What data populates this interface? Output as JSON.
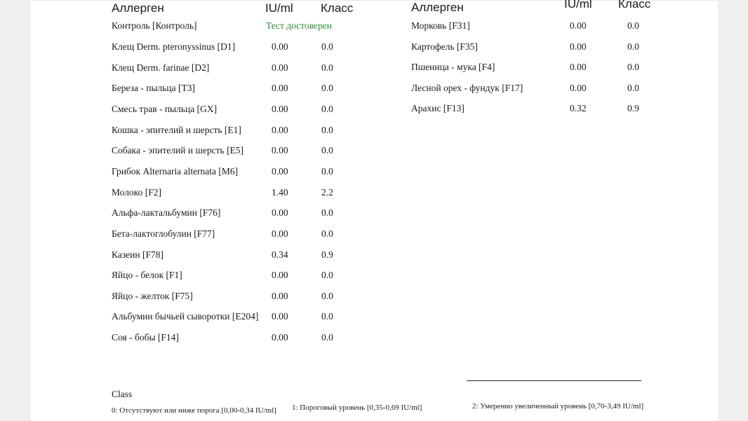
{
  "left_table": {
    "headers": {
      "allergen": "Аллерген",
      "iu": "IU/ml",
      "class": "Класс"
    },
    "control": {
      "name": "Контроль [Контроль]",
      "status": "Тест достоверен"
    },
    "rows": [
      {
        "name": "Клещ Derm. pteronyssinus [D1]",
        "iu": "0.00",
        "cls": "0.0"
      },
      {
        "name": "Клещ Derm. farinae [D2]",
        "iu": "0.00",
        "cls": "0.0"
      },
      {
        "name": "Береза - пыльца [T3]",
        "iu": "0.00",
        "cls": "0.0"
      },
      {
        "name": "Смесь трав - пыльца [GX]",
        "iu": "0.00",
        "cls": "0.0"
      },
      {
        "name": "Кошка - эпителий и шерсть [E1]",
        "iu": "0.00",
        "cls": "0.0"
      },
      {
        "name": "Собака - эпителий и шерсть [E5]",
        "iu": "0.00",
        "cls": "0.0"
      },
      {
        "name": "Грибок Alternaria alternata [M6]",
        "iu": "0.00",
        "cls": "0.0"
      },
      {
        "name": "Молоко [F2]",
        "iu": "1.40",
        "cls": "2.2"
      },
      {
        "name": "Альфа-лактальбумин [F76]",
        "iu": "0.00",
        "cls": "0.0"
      },
      {
        "name": "Бета-лактоглобулин [F77]",
        "iu": "0.00",
        "cls": "0.0"
      },
      {
        "name": "Казеин [F78]",
        "iu": "0.34",
        "cls": "0.9"
      },
      {
        "name": "Яйцо - белок [F1]",
        "iu": "0.00",
        "cls": "0.0"
      },
      {
        "name": "Яйцо - желток [F75]",
        "iu": "0.00",
        "cls": "0.0"
      },
      {
        "name": "Альбумин бычьей сыворотки  [E204]",
        "iu": "0.00",
        "cls": "0.0"
      },
      {
        "name": "Соя - бобы [F14]",
        "iu": "0.00",
        "cls": "0.0"
      }
    ]
  },
  "right_table": {
    "headers": {
      "allergen": "Аллерген",
      "iu": "IU/ml",
      "class": "Класс"
    },
    "rows": [
      {
        "name": "Морковь [F31]",
        "iu": "0.00",
        "cls": "0.0"
      },
      {
        "name": "Картофель [F35]",
        "iu": "0.00",
        "cls": "0.0"
      },
      {
        "name": "Пшеница - мука [F4]",
        "iu": "0.00",
        "cls": "0.0"
      },
      {
        "name": "Лесной орех - фундук [F17]",
        "iu": "0.00",
        "cls": "0.0"
      },
      {
        "name": "Арахис [F13]",
        "iu": "0.32",
        "cls": "0.9"
      }
    ]
  },
  "legend": {
    "title": "Class",
    "c0": "0: Отсутствуют или ниже порога [0,00-0,34 IU/ml]",
    "c1": "1: Пороговый уровень [0,35-0,69 IU/ml]",
    "c2": "2: Умеренно увеличенный уровень [0,70-3,49 IU/ml]"
  }
}
